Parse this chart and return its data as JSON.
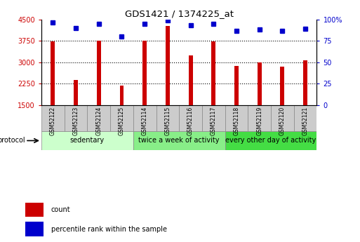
{
  "title": "GDS1421 / 1374225_at",
  "samples": [
    "GSM52122",
    "GSM52123",
    "GSM52124",
    "GSM52125",
    "GSM52114",
    "GSM52115",
    "GSM52116",
    "GSM52117",
    "GSM52118",
    "GSM52119",
    "GSM52120",
    "GSM52121"
  ],
  "counts": [
    3720,
    2390,
    3760,
    2180,
    3760,
    4280,
    3230,
    3720,
    2870,
    2990,
    2840,
    3060
  ],
  "percentile_ranks": [
    96,
    90,
    95,
    80,
    95,
    99,
    93,
    95,
    87,
    88,
    87,
    89
  ],
  "ylim_left": [
    1500,
    4500
  ],
  "ylim_right": [
    0,
    100
  ],
  "yticks_left": [
    1500,
    2250,
    3000,
    3750,
    4500
  ],
  "yticks_right": [
    0,
    25,
    50,
    75,
    100
  ],
  "bar_color": "#cc0000",
  "dot_color": "#0000cc",
  "groups": [
    {
      "label": "sedentary",
      "start": 0,
      "end": 4,
      "color": "#ccffcc"
    },
    {
      "label": "twice a week of activity",
      "start": 4,
      "end": 8,
      "color": "#88ee88"
    },
    {
      "label": "every other day of activity",
      "start": 8,
      "end": 12,
      "color": "#44dd44"
    }
  ],
  "protocol_label": "protocol",
  "legend_count_label": "count",
  "legend_pct_label": "percentile rank within the sample",
  "bg_color": "#ffffff",
  "sample_bg": "#cccccc",
  "tick_label_color_left": "#cc0000",
  "tick_label_color_right": "#0000cc"
}
